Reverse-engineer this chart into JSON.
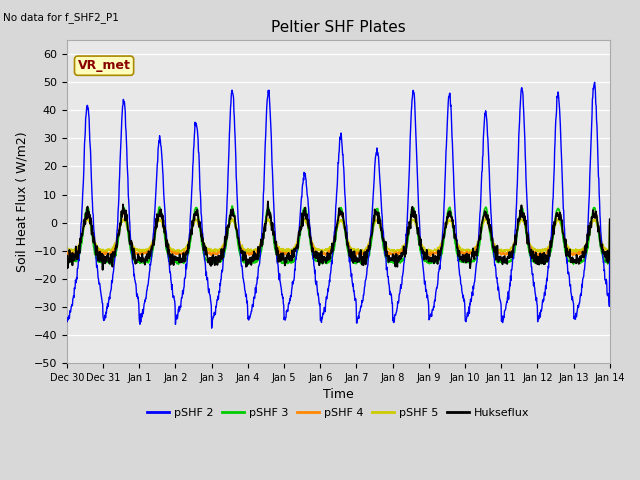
{
  "title": "Peltier SHF Plates",
  "subtitle": "No data for f_SHF2_P1",
  "xlabel": "Time",
  "ylabel": "Soil Heat Flux ( W/m2)",
  "ylim": [
    -50,
    65
  ],
  "yticks": [
    -50,
    -40,
    -30,
    -20,
    -10,
    0,
    10,
    20,
    30,
    40,
    50,
    60
  ],
  "xtick_labels": [
    "Dec 30",
    "Dec 31",
    "Jan 1",
    "Jan 2",
    "Jan 3",
    "Jan 4",
    "Jan 5",
    "Jan 6",
    "Jan 7",
    "Jan 8",
    "Jan 9",
    "Jan 10",
    "Jan 11",
    "Jan 12",
    "Jan 13",
    "Jan 14"
  ],
  "n_days": 15,
  "colors": {
    "pSHF2": "#0000ff",
    "pSHF3": "#00cc00",
    "pSHF4": "#ff8800",
    "pSHF5": "#cccc00",
    "Hukseflux": "#000000"
  },
  "legend_labels": [
    "pSHF 2",
    "pSHF 3",
    "pSHF 4",
    "pSHF 5",
    "Hukseflux"
  ],
  "bg_color": "#d8d8d8",
  "plot_bg_color": "#e8e8e8",
  "vr_met_label": "VR_met",
  "vr_met_color": "#880000",
  "vr_met_bg": "#ffffbb"
}
